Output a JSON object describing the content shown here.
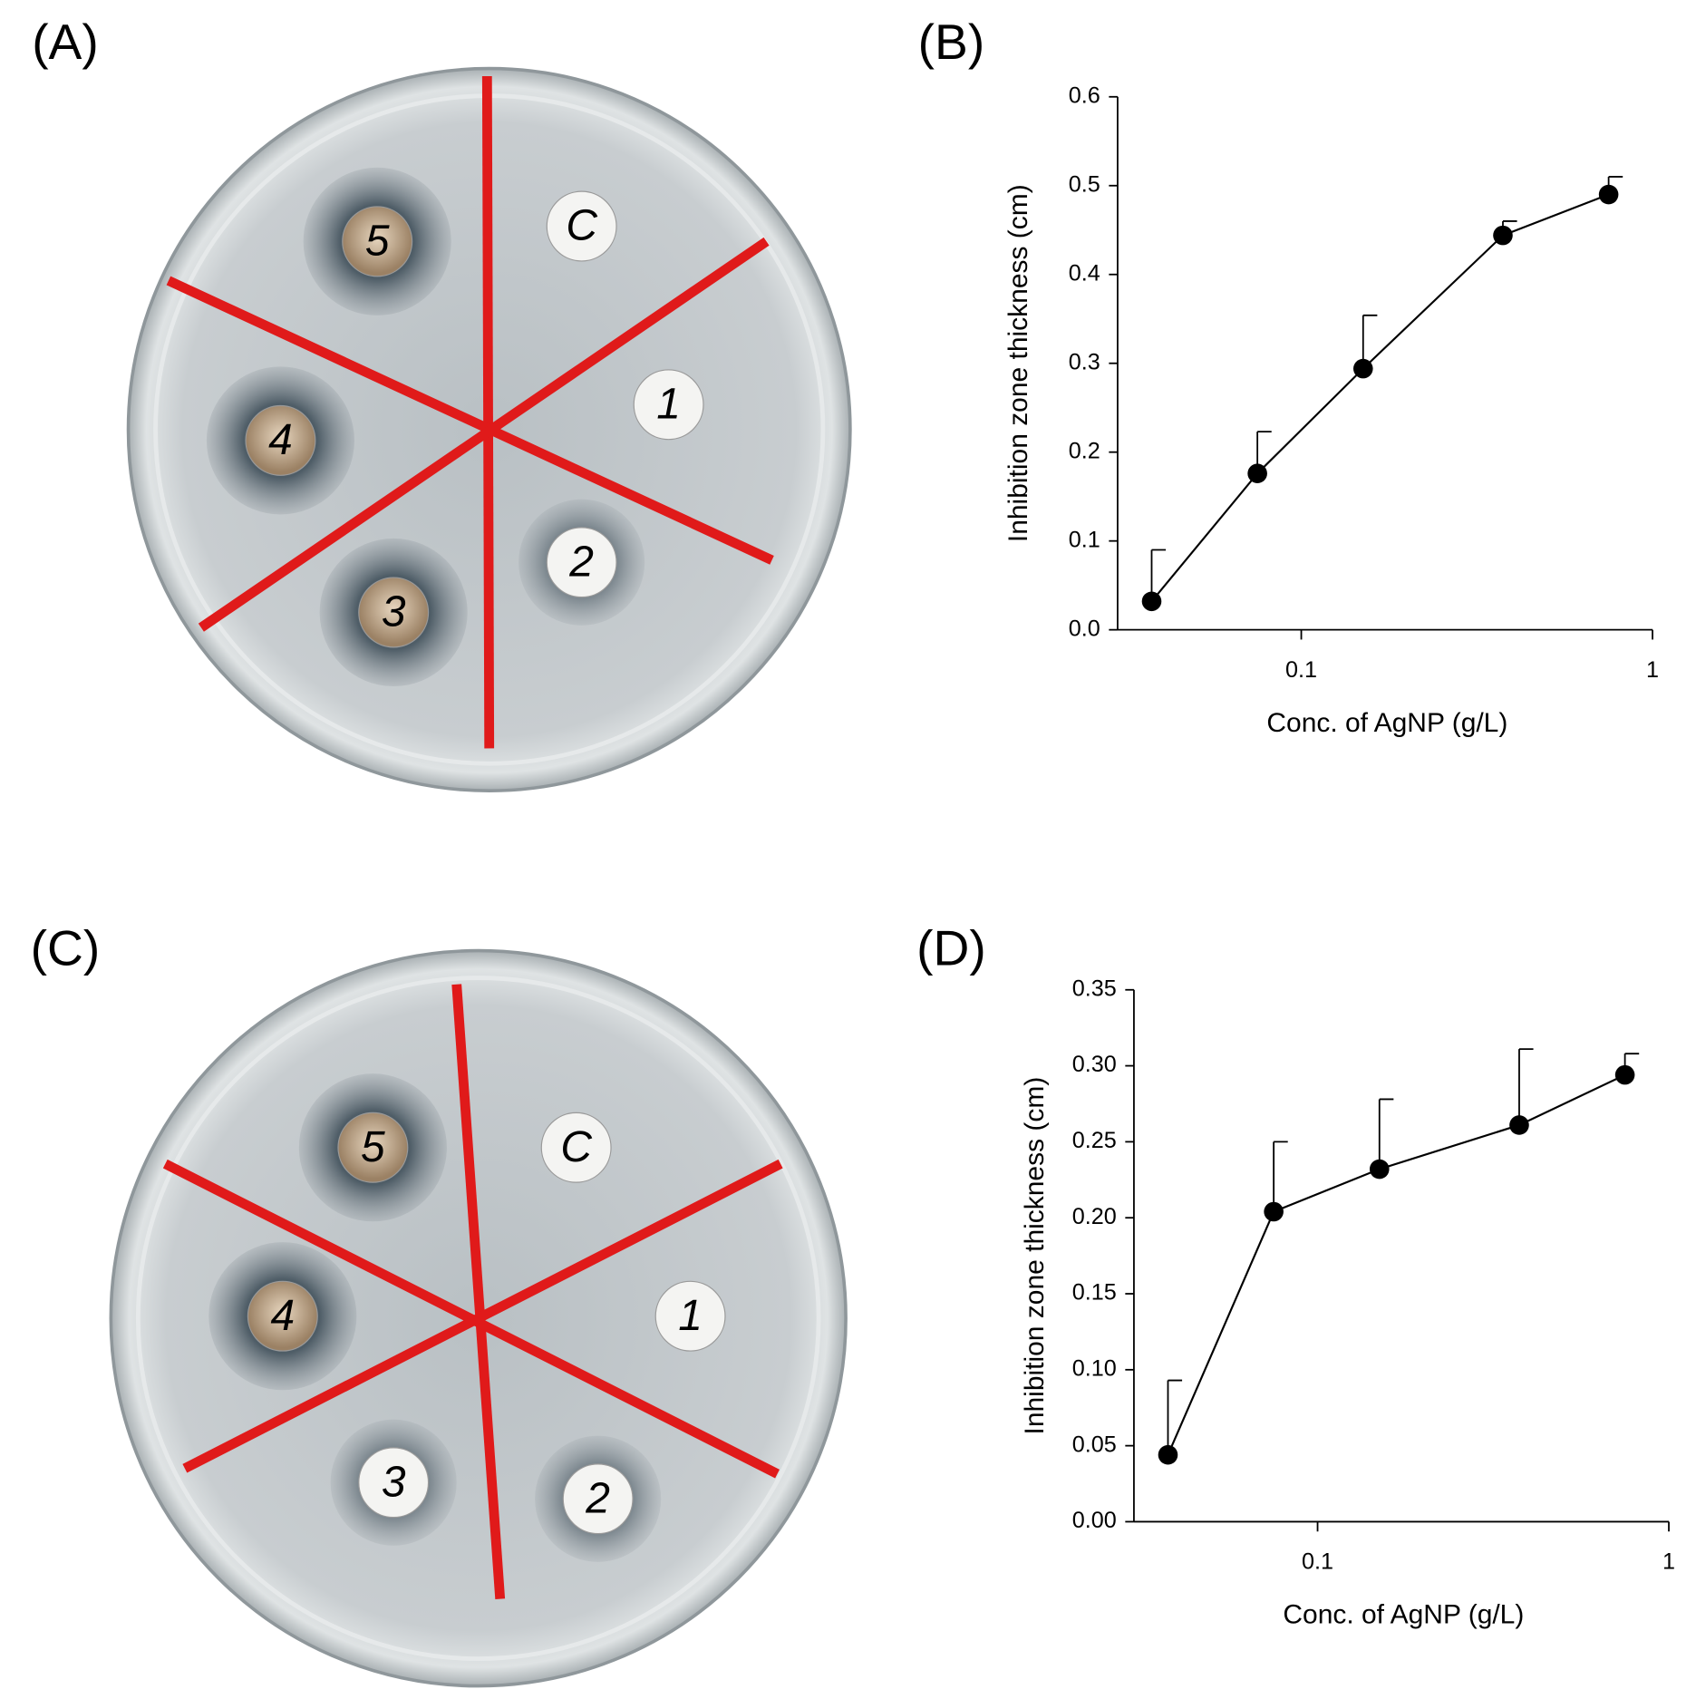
{
  "panels": [
    "(A)",
    "(B)",
    "(C)",
    "(D)"
  ],
  "plates": [
    {
      "disks": [
        "C",
        "1",
        "2",
        "3",
        "4",
        "5"
      ]
    },
    {
      "disks": [
        "C",
        "1",
        "2",
        "3",
        "4",
        "5"
      ]
    }
  ],
  "chart_data": [
    {
      "type": "line",
      "x_label": "Conc. of AgNP (g/L)",
      "y_label": "Inhibition zone thickness (cm)",
      "log_x": true,
      "xlim": [
        0.03,
        1
      ],
      "xticks": [
        0.1,
        1
      ],
      "ylim": [
        0,
        0.6
      ],
      "yticks": [
        {
          "value": 0,
          "label": "0.0"
        },
        0.1,
        0.2,
        0.3,
        0.4,
        0.5,
        0.6
      ],
      "x": [
        0.0375,
        0.075,
        0.15,
        0.375,
        0.75
      ],
      "series": [
        {
          "color": "#000000",
          "values": [
            0.032,
            0.176,
            0.294,
            0.444,
            0.49
          ],
          "errors": [
            0.058,
            0.047,
            0.06,
            0.016,
            0.02
          ]
        }
      ]
    },
    {
      "type": "line",
      "x_label": "Conc. of AgNP (g/L)",
      "y_label": "Inhibition zone thickness (cm)",
      "log_x": true,
      "xlim": [
        0.03,
        1
      ],
      "xticks": [
        0.1,
        1
      ],
      "ylim": [
        0,
        0.35
      ],
      "yticks": [
        {
          "value": 0,
          "label": "0.00"
        },
        0.05,
        {
          "value": 0.1,
          "label": "0.10"
        },
        0.15,
        {
          "value": 0.2,
          "label": "0.20"
        },
        0.25,
        {
          "value": 0.3,
          "label": "0.30"
        },
        0.35
      ],
      "x": [
        0.0375,
        0.075,
        0.15,
        0.375,
        0.75
      ],
      "series": [
        {
          "color": "#000000",
          "values": [
            0.044,
            0.204,
            0.232,
            0.261,
            0.294
          ],
          "errors": [
            0.049,
            0.046,
            0.046,
            0.05,
            0.014
          ]
        }
      ]
    }
  ]
}
